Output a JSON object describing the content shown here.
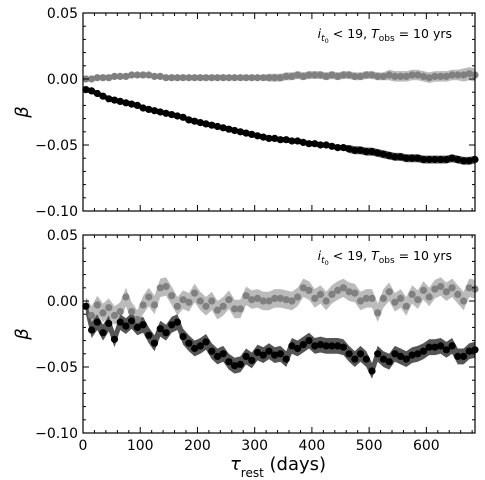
{
  "figure": {
    "x_axis_label_main": "τ",
    "x_axis_label_sub": "rest",
    "x_axis_label_unit": " (days)"
  },
  "chart_data": [
    {
      "type": "scatter",
      "annotation": "i_{t0} < 19, T_obs = 10 yrs",
      "ylabel": "β",
      "xlabel": "",
      "xlim": [
        0,
        685
      ],
      "ylim": [
        -0.1,
        0.05
      ],
      "x_ticks": [
        0,
        100,
        200,
        300,
        400,
        500,
        600
      ],
      "x_tick_labels": [
        "",
        "",
        "",
        "",
        "",
        "",
        ""
      ],
      "y_ticks": [
        -0.1,
        -0.05,
        0.0,
        0.05
      ],
      "y_tick_labels": [
        "−0.10",
        "−0.05",
        "0.00",
        "0.05"
      ],
      "grid": false,
      "x": [
        5,
        15,
        25,
        35,
        45,
        55,
        65,
        75,
        85,
        95,
        105,
        115,
        125,
        135,
        145,
        155,
        165,
        175,
        185,
        195,
        205,
        215,
        225,
        235,
        245,
        255,
        265,
        275,
        285,
        295,
        305,
        315,
        325,
        335,
        345,
        355,
        365,
        375,
        385,
        395,
        405,
        415,
        425,
        435,
        445,
        455,
        465,
        475,
        485,
        495,
        505,
        515,
        525,
        535,
        545,
        555,
        565,
        575,
        585,
        595,
        605,
        615,
        625,
        635,
        645,
        655,
        665,
        675,
        685
      ],
      "series": [
        {
          "color": "#808080",
          "band_color": "#bbbbbb",
          "values": [
            0.0,
            0.0,
            0.001,
            0.001,
            0.001,
            0.002,
            0.002,
            0.002,
            0.003,
            0.003,
            0.003,
            0.003,
            0.002,
            0.002,
            0.001,
            0.001,
            0.001,
            0.001,
            0.001,
            0.001,
            0.001,
            0.001,
            0.001,
            0.001,
            0.001,
            0.001,
            0.001,
            0.001,
            0.001,
            0.001,
            0.001,
            0.001,
            0.001,
            0.001,
            0.001,
            0.002,
            0.002,
            0.003,
            0.002,
            0.003,
            0.003,
            0.003,
            0.002,
            0.003,
            0.002,
            0.003,
            0.003,
            0.002,
            0.002,
            0.003,
            0.003,
            0.002,
            0.002,
            0.003,
            0.002,
            0.002,
            0.002,
            0.003,
            0.003,
            0.002,
            0.001,
            0.002,
            0.002,
            0.002,
            0.003,
            0.003,
            0.003,
            0.004,
            0.003
          ],
          "err": [
            0.002,
            0.002,
            0.002,
            0.002,
            0.002,
            0.002,
            0.002,
            0.002,
            0.002,
            0.002,
            0.002,
            0.002,
            0.002,
            0.002,
            0.002,
            0.002,
            0.002,
            0.002,
            0.002,
            0.002,
            0.002,
            0.002,
            0.002,
            0.002,
            0.002,
            0.002,
            0.002,
            0.002,
            0.002,
            0.002,
            0.002,
            0.002,
            0.003,
            0.003,
            0.003,
            0.003,
            0.003,
            0.003,
            0.003,
            0.003,
            0.003,
            0.003,
            0.003,
            0.003,
            0.003,
            0.003,
            0.003,
            0.003,
            0.003,
            0.003,
            0.003,
            0.003,
            0.003,
            0.004,
            0.004,
            0.004,
            0.004,
            0.004,
            0.004,
            0.004,
            0.004,
            0.004,
            0.004,
            0.004,
            0.004,
            0.004,
            0.005,
            0.005,
            0.005
          ]
        },
        {
          "color": "#000000",
          "band_color": "#555555",
          "values": [
            -0.008,
            -0.009,
            -0.011,
            -0.013,
            -0.015,
            -0.016,
            -0.017,
            -0.018,
            -0.019,
            -0.02,
            -0.022,
            -0.023,
            -0.024,
            -0.025,
            -0.026,
            -0.027,
            -0.028,
            -0.029,
            -0.031,
            -0.032,
            -0.033,
            -0.034,
            -0.035,
            -0.036,
            -0.037,
            -0.038,
            -0.039,
            -0.04,
            -0.041,
            -0.042,
            -0.043,
            -0.044,
            -0.045,
            -0.045,
            -0.046,
            -0.046,
            -0.047,
            -0.047,
            -0.048,
            -0.049,
            -0.049,
            -0.05,
            -0.05,
            -0.051,
            -0.052,
            -0.052,
            -0.053,
            -0.054,
            -0.054,
            -0.055,
            -0.055,
            -0.056,
            -0.057,
            -0.058,
            -0.059,
            -0.059,
            -0.06,
            -0.06,
            -0.06,
            -0.061,
            -0.061,
            -0.061,
            -0.061,
            -0.061,
            -0.06,
            -0.061,
            -0.062,
            -0.062,
            -0.061
          ],
          "err": [
            0.002,
            0.002,
            0.002,
            0.002,
            0.002,
            0.002,
            0.002,
            0.002,
            0.002,
            0.002,
            0.002,
            0.002,
            0.002,
            0.002,
            0.002,
            0.002,
            0.002,
            0.002,
            0.002,
            0.002,
            0.002,
            0.002,
            0.002,
            0.002,
            0.002,
            0.002,
            0.002,
            0.002,
            0.002,
            0.002,
            0.002,
            0.002,
            0.002,
            0.002,
            0.002,
            0.002,
            0.002,
            0.002,
            0.002,
            0.002,
            0.002,
            0.002,
            0.002,
            0.002,
            0.002,
            0.002,
            0.003,
            0.003,
            0.003,
            0.003,
            0.003,
            0.003,
            0.003,
            0.003,
            0.003,
            0.003,
            0.003,
            0.003,
            0.003,
            0.003,
            0.003,
            0.003,
            0.003,
            0.003,
            0.003,
            0.003,
            0.003,
            0.003,
            0.003
          ]
        }
      ]
    },
    {
      "type": "scatter",
      "annotation": "i_{t0} < 19, T_obs = 10 yrs",
      "ylabel": "β",
      "xlabel": "τ_rest (days)",
      "xlim": [
        0,
        685
      ],
      "ylim": [
        -0.1,
        0.05
      ],
      "x_ticks": [
        0,
        100,
        200,
        300,
        400,
        500,
        600
      ],
      "x_tick_labels": [
        "0",
        "100",
        "200",
        "300",
        "400",
        "500",
        "600"
      ],
      "y_ticks": [
        -0.1,
        -0.05,
        0.0,
        0.05
      ],
      "y_tick_labels": [
        "−0.10",
        "−0.05",
        "0.00",
        "0.05"
      ],
      "grid": false,
      "x": [
        5,
        15,
        25,
        35,
        45,
        55,
        65,
        75,
        85,
        95,
        105,
        115,
        125,
        135,
        145,
        155,
        165,
        175,
        185,
        195,
        205,
        215,
        225,
        235,
        245,
        255,
        265,
        275,
        285,
        295,
        305,
        315,
        325,
        335,
        345,
        355,
        365,
        375,
        385,
        395,
        405,
        415,
        425,
        435,
        445,
        455,
        465,
        475,
        485,
        495,
        505,
        515,
        525,
        535,
        545,
        555,
        565,
        575,
        585,
        595,
        605,
        615,
        625,
        635,
        645,
        655,
        665,
        675,
        685
      ],
      "series": [
        {
          "color": "#808080",
          "band_color": "#bbbbbb",
          "values": [
            -0.004,
            -0.011,
            -0.003,
            -0.009,
            -0.005,
            -0.011,
            -0.008,
            0.003,
            -0.008,
            -0.014,
            -0.003,
            0.003,
            -0.003,
            0.01,
            0.011,
            0.004,
            -0.004,
            0.001,
            -0.001,
            0.006,
            0.0,
            -0.004,
            0.0,
            -0.007,
            -0.004,
            0.001,
            -0.006,
            -0.006,
            0.004,
            0.001,
            0.002,
            0.0,
            0.0,
            0.002,
            0.002,
            0.001,
            0.0,
            0.003,
            0.01,
            0.008,
            0.002,
            0.005,
            0.0,
            0.005,
            0.008,
            0.01,
            0.007,
            0.006,
            0.0,
            0.002,
            0.002,
            -0.009,
            0.002,
            0.007,
            -0.001,
            0.002,
            -0.004,
            0.005,
            0.001,
            0.008,
            0.003,
            0.009,
            0.011,
            0.007,
            0.01,
            0.005,
            0.0,
            0.01,
            0.009
          ],
          "err": [
            0.007,
            0.007,
            0.007,
            0.007,
            0.007,
            0.007,
            0.007,
            0.007,
            0.007,
            0.007,
            0.007,
            0.007,
            0.007,
            0.007,
            0.007,
            0.007,
            0.007,
            0.007,
            0.007,
            0.007,
            0.007,
            0.007,
            0.007,
            0.007,
            0.007,
            0.007,
            0.007,
            0.007,
            0.007,
            0.007,
            0.007,
            0.007,
            0.007,
            0.007,
            0.007,
            0.007,
            0.007,
            0.007,
            0.007,
            0.007,
            0.007,
            0.007,
            0.007,
            0.007,
            0.007,
            0.007,
            0.007,
            0.007,
            0.007,
            0.007,
            0.007,
            0.007,
            0.007,
            0.007,
            0.007,
            0.007,
            0.007,
            0.007,
            0.007,
            0.007,
            0.007,
            0.007,
            0.007,
            0.007,
            0.007,
            0.007,
            0.007,
            0.007,
            0.007
          ]
        },
        {
          "color": "#000000",
          "band_color": "#555555",
          "values": [
            -0.004,
            -0.022,
            -0.016,
            -0.024,
            -0.017,
            -0.029,
            -0.016,
            -0.019,
            -0.015,
            -0.02,
            -0.018,
            -0.026,
            -0.032,
            -0.021,
            -0.024,
            -0.018,
            -0.016,
            -0.027,
            -0.032,
            -0.036,
            -0.034,
            -0.031,
            -0.038,
            -0.042,
            -0.04,
            -0.046,
            -0.049,
            -0.048,
            -0.042,
            -0.045,
            -0.039,
            -0.041,
            -0.038,
            -0.041,
            -0.04,
            -0.044,
            -0.034,
            -0.036,
            -0.033,
            -0.03,
            -0.034,
            -0.033,
            -0.034,
            -0.034,
            -0.034,
            -0.035,
            -0.04,
            -0.044,
            -0.04,
            -0.044,
            -0.053,
            -0.04,
            -0.044,
            -0.046,
            -0.04,
            -0.042,
            -0.044,
            -0.041,
            -0.04,
            -0.038,
            -0.035,
            -0.035,
            -0.034,
            -0.037,
            -0.034,
            -0.042,
            -0.042,
            -0.038,
            -0.037
          ],
          "err": [
            0.006,
            0.006,
            0.006,
            0.006,
            0.006,
            0.006,
            0.006,
            0.006,
            0.006,
            0.006,
            0.006,
            0.006,
            0.006,
            0.006,
            0.006,
            0.006,
            0.006,
            0.006,
            0.006,
            0.006,
            0.006,
            0.006,
            0.006,
            0.006,
            0.006,
            0.006,
            0.006,
            0.006,
            0.006,
            0.006,
            0.006,
            0.006,
            0.006,
            0.006,
            0.006,
            0.006,
            0.006,
            0.006,
            0.006,
            0.006,
            0.006,
            0.006,
            0.006,
            0.006,
            0.006,
            0.006,
            0.006,
            0.006,
            0.006,
            0.006,
            0.006,
            0.006,
            0.006,
            0.006,
            0.006,
            0.006,
            0.006,
            0.006,
            0.006,
            0.006,
            0.006,
            0.006,
            0.006,
            0.006,
            0.006,
            0.006,
            0.006,
            0.006,
            0.006
          ]
        }
      ]
    }
  ]
}
